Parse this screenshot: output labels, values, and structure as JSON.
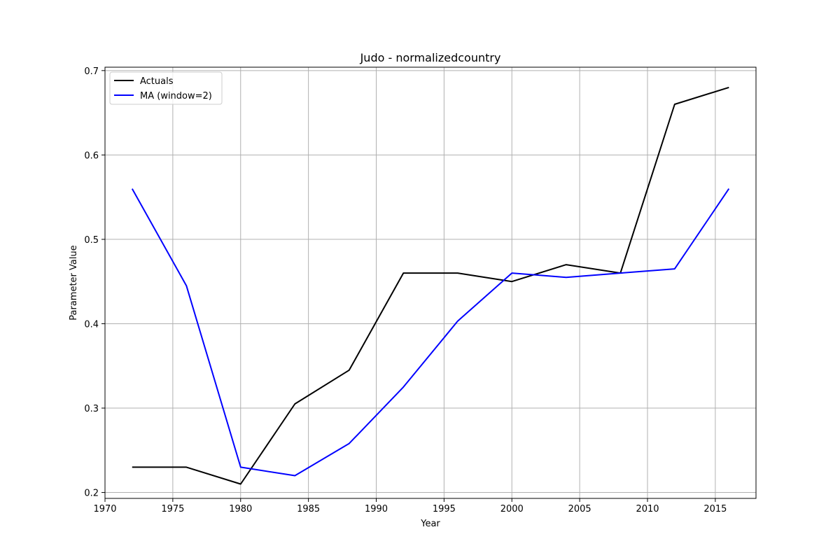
{
  "chart_data": {
    "type": "line",
    "title": "Judo - normalizedcountry",
    "xlabel": "Year",
    "ylabel": "Parameter Value",
    "xlim": [
      1970,
      2018
    ],
    "ylim": [
      0.193,
      0.704
    ],
    "xticks": [
      1970,
      1975,
      1980,
      1985,
      1990,
      1995,
      2000,
      2005,
      2010,
      2015
    ],
    "yticks": [
      0.2,
      0.3,
      0.4,
      0.5,
      0.6,
      0.7
    ],
    "grid": true,
    "legend_position": "top-left",
    "x": [
      1972,
      1976,
      1980,
      1984,
      1988,
      1992,
      1996,
      2000,
      2004,
      2008,
      2012,
      2016
    ],
    "series": [
      {
        "name": "Actuals",
        "color": "#000000",
        "values": [
          0.23,
          0.23,
          0.21,
          0.305,
          0.345,
          0.46,
          0.46,
          0.45,
          0.47,
          0.46,
          0.66,
          0.68
        ]
      },
      {
        "name": "MA (window=2)",
        "color": "#0000ff",
        "values": [
          0.56,
          0.445,
          0.23,
          0.22,
          0.258,
          0.325,
          0.403,
          0.46,
          0.455,
          0.46,
          0.465,
          0.56
        ]
      }
    ]
  }
}
